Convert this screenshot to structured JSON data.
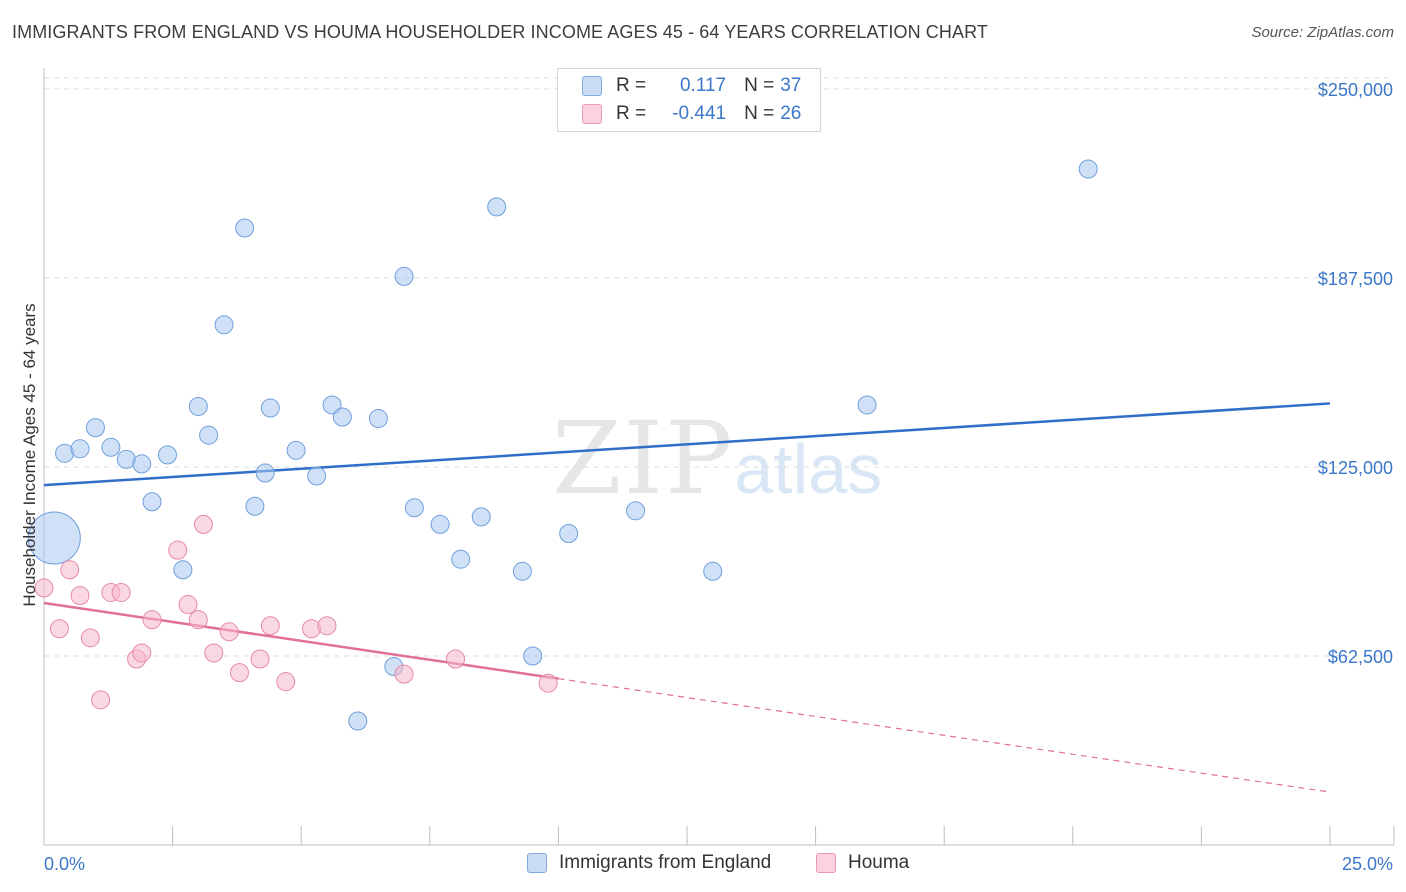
{
  "title": "IMMIGRANTS FROM ENGLAND VS HOUMA HOUSEHOLDER INCOME AGES 45 - 64 YEARS CORRELATION CHART",
  "source": "Source: ZipAtlas.com",
  "watermark": {
    "zip": "ZIP",
    "atlas": "atlas"
  },
  "legend": {
    "rows": [
      {
        "r_label": "R =",
        "r_value": "0.117",
        "n_label": "N =",
        "n_value": "37",
        "color": "#a9c8f0"
      },
      {
        "r_label": "R =",
        "r_value": "-0.441",
        "n_label": "N =",
        "n_value": "26",
        "color": "#f5b8ca"
      }
    ]
  },
  "bottom_legend": [
    {
      "label": "Immigrants from England",
      "color": "#a9c8f0"
    },
    {
      "label": "Houma",
      "color": "#f5b8ca"
    }
  ],
  "chart_data": {
    "type": "scatter",
    "title": "IMMIGRANTS FROM ENGLAND VS HOUMA HOUSEHOLDER INCOME AGES 45 - 64 YEARS CORRELATION CHART",
    "xlabel": "",
    "ylabel": "Householder Income Ages 45 - 64 years",
    "xlim": [
      0,
      25
    ],
    "ylim": [
      0,
      256250
    ],
    "x_tick_labels": [
      "0.0%",
      "25.0%"
    ],
    "y_ticks": [
      62500,
      125000,
      187500,
      250000
    ],
    "y_tick_labels": [
      "$62,500",
      "$125,000",
      "$187,500",
      "$250,000"
    ],
    "grid": true,
    "legend_position": "top-center",
    "series": [
      {
        "name": "Immigrants from England",
        "color": "#a9c8f0",
        "stroke": "#6f9fdc",
        "trend_color": "#2f6fc9",
        "trend": {
          "x0": 0,
          "y0": 119000,
          "x1": 25,
          "y1": 146000,
          "x_end_solid": 25
        },
        "points": [
          {
            "x": 0.2,
            "y": 101500,
            "big": true
          },
          {
            "x": 0.4,
            "y": 129500
          },
          {
            "x": 0.7,
            "y": 131000
          },
          {
            "x": 1.0,
            "y": 138000
          },
          {
            "x": 1.3,
            "y": 131500
          },
          {
            "x": 1.6,
            "y": 127500
          },
          {
            "x": 1.9,
            "y": 126000
          },
          {
            "x": 2.1,
            "y": 113500
          },
          {
            "x": 2.4,
            "y": 129000
          },
          {
            "x": 2.7,
            "y": 91000
          },
          {
            "x": 3.0,
            "y": 145000
          },
          {
            "x": 3.2,
            "y": 135500
          },
          {
            "x": 3.5,
            "y": 172000
          },
          {
            "x": 3.9,
            "y": 204000
          },
          {
            "x": 4.1,
            "y": 112000
          },
          {
            "x": 4.3,
            "y": 123000
          },
          {
            "x": 4.4,
            "y": 144500
          },
          {
            "x": 4.9,
            "y": 130500
          },
          {
            "x": 5.3,
            "y": 122000
          },
          {
            "x": 5.6,
            "y": 145500
          },
          {
            "x": 5.8,
            "y": 141500
          },
          {
            "x": 6.1,
            "y": 41000
          },
          {
            "x": 6.5,
            "y": 141000
          },
          {
            "x": 6.8,
            "y": 59000
          },
          {
            "x": 7.0,
            "y": 188000
          },
          {
            "x": 7.2,
            "y": 111500
          },
          {
            "x": 7.7,
            "y": 106000
          },
          {
            "x": 8.1,
            "y": 94500
          },
          {
            "x": 8.5,
            "y": 108500
          },
          {
            "x": 8.8,
            "y": 211000
          },
          {
            "x": 9.3,
            "y": 90500
          },
          {
            "x": 9.5,
            "y": 62500
          },
          {
            "x": 10.2,
            "y": 103000
          },
          {
            "x": 11.5,
            "y": 110500
          },
          {
            "x": 13.0,
            "y": 90500
          },
          {
            "x": 16.0,
            "y": 145500
          },
          {
            "x": 20.3,
            "y": 223500
          }
        ]
      },
      {
        "name": "Houma",
        "color": "#f5b8ca",
        "stroke": "#e68aa6",
        "trend_color": "#e0709a",
        "trend": {
          "x0": 0,
          "y0": 80000,
          "x1": 25,
          "y1": 17500,
          "x_end_solid": 10
        },
        "points": [
          {
            "x": 0.0,
            "y": 85000
          },
          {
            "x": 0.3,
            "y": 71500
          },
          {
            "x": 0.5,
            "y": 91000
          },
          {
            "x": 0.7,
            "y": 82500
          },
          {
            "x": 0.9,
            "y": 68500
          },
          {
            "x": 1.1,
            "y": 48000
          },
          {
            "x": 1.3,
            "y": 83500
          },
          {
            "x": 1.5,
            "y": 83500
          },
          {
            "x": 1.8,
            "y": 61500
          },
          {
            "x": 1.9,
            "y": 63500
          },
          {
            "x": 2.1,
            "y": 74500
          },
          {
            "x": 2.6,
            "y": 97500
          },
          {
            "x": 2.8,
            "y": 79500
          },
          {
            "x": 3.0,
            "y": 74500
          },
          {
            "x": 3.1,
            "y": 106000
          },
          {
            "x": 3.3,
            "y": 63500
          },
          {
            "x": 3.6,
            "y": 70500
          },
          {
            "x": 3.8,
            "y": 57000
          },
          {
            "x": 4.2,
            "y": 61500
          },
          {
            "x": 4.4,
            "y": 72500
          },
          {
            "x": 4.7,
            "y": 54000
          },
          {
            "x": 5.2,
            "y": 71500
          },
          {
            "x": 5.5,
            "y": 72500
          },
          {
            "x": 7.0,
            "y": 56500
          },
          {
            "x": 8.0,
            "y": 61500
          },
          {
            "x": 9.8,
            "y": 53500
          }
        ]
      }
    ]
  }
}
